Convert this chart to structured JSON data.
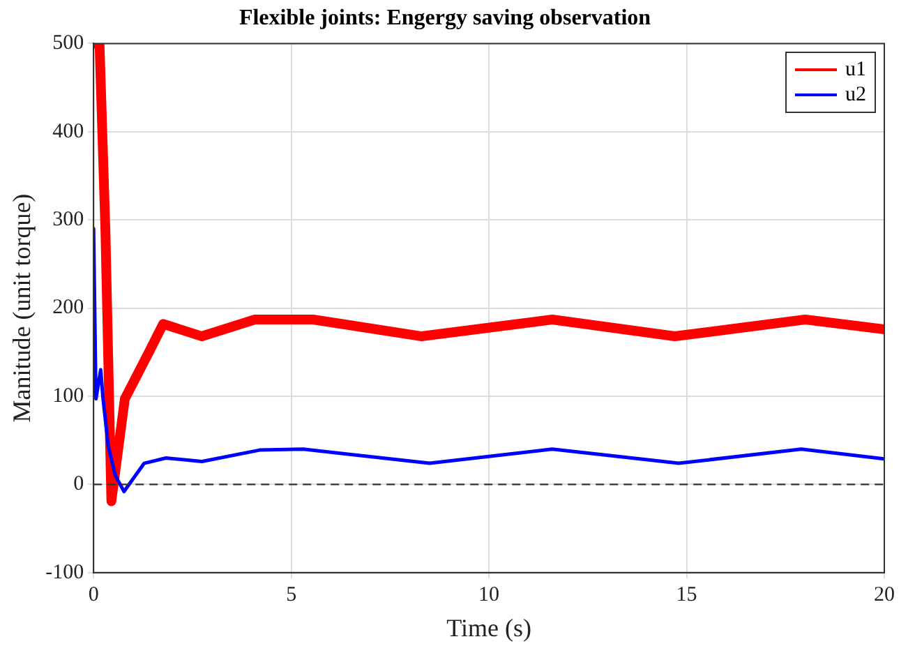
{
  "chart_data": {
    "type": "line",
    "title": "Flexible joints: Engergy saving observation",
    "xlabel": "Time (s)",
    "ylabel": "Manitude (unit torque)",
    "xlim": [
      0,
      20
    ],
    "ylim": [
      -100,
      500
    ],
    "xticks": [
      0,
      5,
      10,
      15,
      20
    ],
    "yticks": [
      -100,
      0,
      100,
      200,
      300,
      400,
      500
    ],
    "grid": true,
    "legend": "top right",
    "marker": "none",
    "line_style": "solid",
    "ref_lines": [
      {
        "axis": "y",
        "value": 0,
        "color": "#333333",
        "line_style": "dashed"
      }
    ],
    "series": [
      {
        "name": "u1",
        "color": "#ff0000",
        "x": [
          0,
          0.15,
          0.3,
          0.45,
          0.79,
          1.4,
          1.76,
          2.74,
          4.08,
          5.55,
          8.3,
          11.6,
          14.7,
          18.0,
          20
        ],
        "values": [
          500,
          500,
          287,
          -19,
          97,
          150,
          182,
          168,
          187,
          187,
          168,
          187,
          168,
          187,
          176
        ]
      },
      {
        "name": "u2",
        "color": "#0000ff",
        "x": [
          0,
          0.06,
          0.18,
          0.24,
          0.37,
          0.55,
          0.77,
          1.28,
          1.83,
          2.74,
          4.2,
          5.3,
          8.5,
          11.6,
          14.8,
          17.9,
          20
        ],
        "values": [
          290,
          97,
          130,
          97,
          44,
          10,
          -8,
          24,
          30,
          26,
          39,
          40,
          24,
          40,
          24,
          40,
          29
        ]
      }
    ]
  }
}
